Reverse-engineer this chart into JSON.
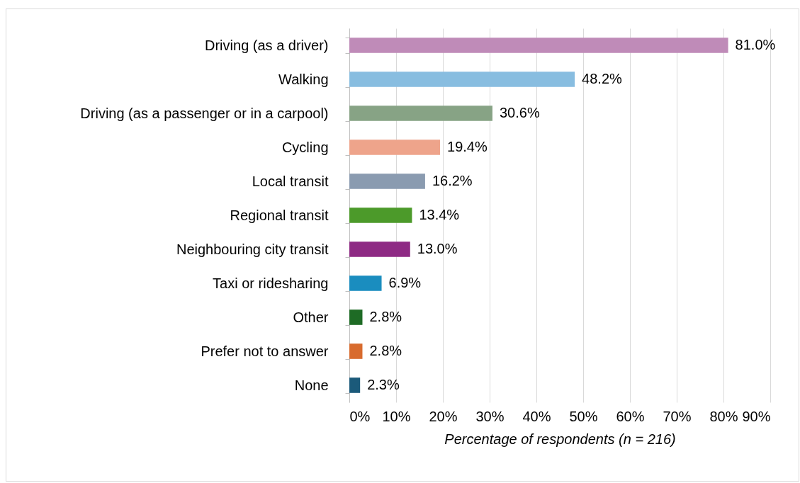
{
  "chart_data": {
    "type": "bar",
    "orientation": "horizontal",
    "xlabel": "Percentage of respondents (n = 216)",
    "categories": [
      "Driving (as a driver)",
      "Walking",
      "Driving (as a passenger or in a carpool)",
      "Cycling",
      "Local transit",
      "Regional transit",
      "Neighbouring city transit",
      "Taxi or ridesharing",
      "Other",
      "Prefer not to answer",
      "None"
    ],
    "values": [
      81.0,
      48.2,
      30.6,
      19.4,
      16.2,
      13.4,
      13.0,
      6.9,
      2.8,
      2.8,
      2.3
    ],
    "colors": [
      "#bf8bb8",
      "#88bde0",
      "#87a385",
      "#eea48b",
      "#8a9bb0",
      "#4c9a2a",
      "#8e2a84",
      "#1a8dbf",
      "#1e6b25",
      "#d86b2e",
      "#1b5a7a"
    ],
    "value_labels": [
      "81.0%",
      "48.2%",
      "30.6%",
      "19.4%",
      "16.2%",
      "13.4%",
      "13.0%",
      "6.9%",
      "2.8%",
      "2.8%",
      "2.3%"
    ],
    "xlim": [
      0,
      90
    ],
    "xticks": [
      {
        "value": 0,
        "label": "0%"
      },
      {
        "value": 10,
        "label": "10%"
      },
      {
        "value": 20,
        "label": "20%"
      },
      {
        "value": 30,
        "label": "30%"
      },
      {
        "value": 40,
        "label": "40%"
      },
      {
        "value": 50,
        "label": "50%"
      },
      {
        "value": 60,
        "label": "60%"
      },
      {
        "value": 70,
        "label": "70%"
      },
      {
        "value": 80,
        "label": "80%"
      },
      {
        "value": 90,
        "label": "90%"
      }
    ],
    "grid": "x",
    "legend": false
  }
}
